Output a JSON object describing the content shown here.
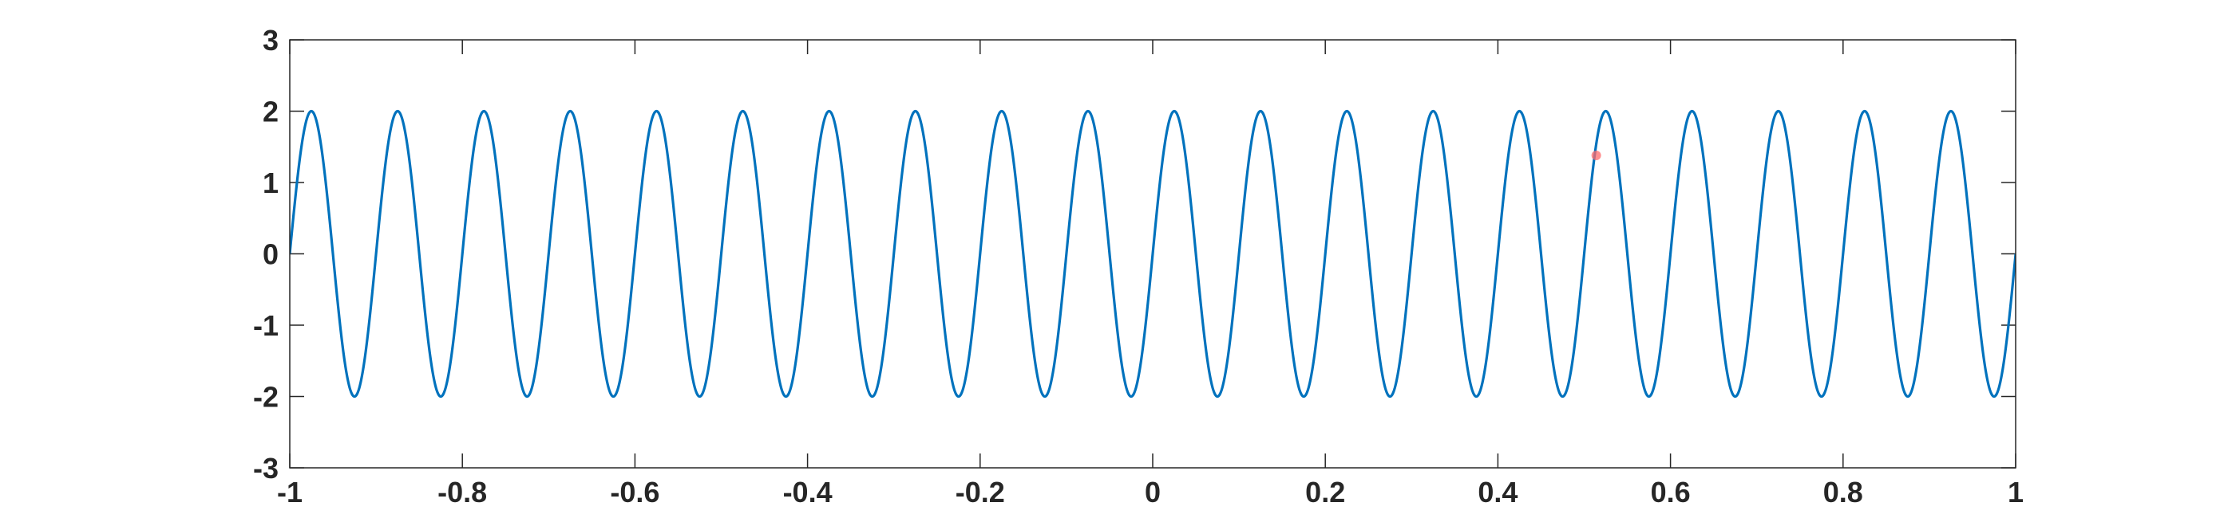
{
  "chart_data": {
    "type": "line",
    "title": "",
    "xlabel": "",
    "ylabel": "",
    "xlim": [
      -1,
      1
    ],
    "ylim": [
      -3,
      3
    ],
    "grid": false,
    "x_ticks": [
      -1,
      -0.8,
      -0.6,
      -0.4,
      -0.2,
      0,
      0.2,
      0.4,
      0.6,
      0.8,
      1
    ],
    "x_tick_labels": [
      "-1",
      "-0.8",
      "-0.6",
      "-0.4",
      "-0.2",
      "0",
      "0.2",
      "0.4",
      "0.6",
      "0.8",
      "1"
    ],
    "y_ticks": [
      -3,
      -2,
      -1,
      0,
      1,
      2,
      3
    ],
    "y_tick_labels": [
      "-3",
      "-2",
      "-1",
      "0",
      "1",
      "2",
      "3"
    ],
    "series": [
      {
        "function": "y = 2*sin(20*pi*x)",
        "amplitude": 2,
        "cycles_per_unit": 10,
        "x_range": [
          -1,
          1
        ],
        "color": "#0072BD"
      }
    ],
    "markers": [
      {
        "x": 0.514,
        "y": 1.38,
        "color": "#FF6B6B"
      }
    ]
  }
}
